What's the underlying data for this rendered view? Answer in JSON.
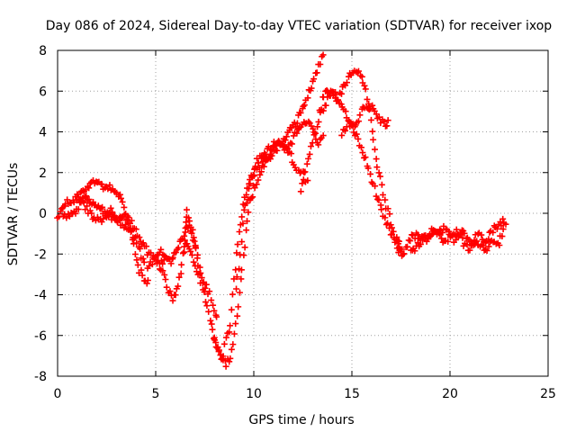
{
  "chart_data": {
    "type": "scatter",
    "title": "Day 086 of 2024, Sidereal Day-to-day VTEC variation (SDTVAR) for receiver ixop",
    "xlabel": "GPS time / hours",
    "ylabel": "SDTVAR / TECUs",
    "xlim": [
      0,
      25
    ],
    "ylim": [
      -8,
      8
    ],
    "xticks": [
      0,
      5,
      10,
      15,
      20,
      25
    ],
    "yticks": [
      -8,
      -6,
      -4,
      -2,
      0,
      2,
      4,
      6,
      8
    ],
    "grid": true,
    "marker": "plus",
    "series_color": "#ff0000",
    "series": [
      {
        "name": "SDTVAR",
        "description": "Multiple overlapping satellite tracks; values estimated from trace envelopes",
        "tracks": [
          {
            "x": [
              0.0,
              0.2,
              0.4,
              0.7,
              1.0,
              1.3,
              1.6,
              1.9,
              2.2,
              2.5,
              2.8,
              3.1,
              3.4,
              3.7,
              4.0,
              4.3,
              4.6,
              4.9,
              5.2,
              5.5
            ],
            "y": [
              -0.2,
              0.3,
              0.5,
              0.6,
              0.8,
              1.1,
              1.4,
              1.5,
              1.4,
              1.2,
              1.3,
              0.9,
              0.3,
              -0.4,
              -0.9,
              -1.4,
              -1.9,
              -2.2,
              -2.4,
              -2.3
            ]
          },
          {
            "x": [
              0.3,
              0.6,
              0.9,
              1.2,
              1.5,
              1.8,
              2.1,
              2.4,
              2.7,
              3.0,
              3.3,
              3.6,
              3.9,
              4.2,
              4.5
            ],
            "y": [
              0.0,
              -0.2,
              0.1,
              0.5,
              0.2,
              -0.2,
              -0.4,
              -0.2,
              0.1,
              -0.3,
              -0.6,
              -0.8,
              -1.1,
              -1.9,
              -2.6
            ]
          },
          {
            "x": [
              1.0,
              1.4,
              1.8,
              2.2,
              2.6,
              3.0,
              3.4,
              3.7,
              3.9,
              4.1,
              4.4,
              4.7
            ],
            "y": [
              0.6,
              0.9,
              0.4,
              0.2,
              -0.1,
              -0.3,
              -0.1,
              -0.6,
              -1.5,
              -2.6,
              -3.3,
              -3.5
            ]
          },
          {
            "x": [
              4.6,
              4.9,
              5.2,
              5.5,
              5.7,
              5.9,
              6.1,
              6.3,
              6.5,
              6.7,
              6.9,
              7.1,
              7.3,
              7.5,
              7.7,
              7.9,
              8.1,
              8.3,
              8.5
            ],
            "y": [
              -2.7,
              -2.3,
              -1.9,
              -2.1,
              -2.4,
              -2.2,
              -1.7,
              -1.3,
              -0.9,
              -0.7,
              -1.2,
              -2.1,
              -3.0,
              -4.0,
              -4.9,
              -5.8,
              -6.4,
              -7.1,
              -6.8
            ]
          },
          {
            "x": [
              5.2,
              5.5,
              5.8,
              6.0,
              6.2,
              6.4,
              6.6,
              6.8,
              7.0,
              7.3,
              7.6,
              7.9,
              8.2
            ],
            "y": [
              -2.6,
              -3.3,
              -4.2,
              -4.0,
              -3.2,
              -2.1,
              -1.4,
              -1.9,
              -2.6,
              -3.3,
              -3.6,
              -4.4,
              -5.4
            ]
          },
          {
            "x": [
              6.4,
              6.5,
              6.6,
              6.8,
              7.0,
              7.2
            ],
            "y": [
              -1.8,
              -1.0,
              0.2,
              -0.6,
              -1.6,
              -2.4
            ]
          },
          {
            "x": [
              8.0,
              8.3,
              8.6,
              8.8,
              9.0,
              9.2,
              9.4,
              9.6,
              9.8,
              10.0,
              10.3,
              10.6,
              11.0,
              11.4,
              11.8,
              12.2,
              12.6,
              13.0,
              13.3,
              13.6
            ],
            "y": [
              -6.2,
              -6.9,
              -7.4,
              -7.0,
              -6.0,
              -4.5,
              -2.8,
              -1.0,
              0.5,
              1.2,
              1.9,
              2.5,
              3.0,
              3.5,
              4.0,
              4.5,
              5.4,
              6.4,
              7.2,
              7.9
            ]
          },
          {
            "x": [
              8.5,
              8.8,
              9.0,
              9.2,
              9.4,
              9.6,
              9.8,
              10.0,
              10.3,
              10.6,
              10.9,
              11.2,
              11.5,
              11.8,
              12.1,
              12.4,
              12.7,
              13.0,
              13.3,
              13.6
            ],
            "y": [
              -6.5,
              -5.5,
              -3.2,
              -1.5,
              0.0,
              1.0,
              1.6,
              2.0,
              2.4,
              3.0,
              3.3,
              3.6,
              3.3,
              3.2,
              3.9,
              4.3,
              4.6,
              4.0,
              3.5,
              3.9
            ]
          },
          {
            "x": [
              9.1,
              9.3,
              9.5,
              9.7,
              9.9,
              10.1,
              10.4,
              10.7,
              11.0,
              11.3,
              11.6,
              11.9,
              12.2,
              12.5,
              12.8
            ],
            "y": [
              -3.8,
              -2.0,
              0.2,
              0.8,
              1.6,
              2.4,
              2.9,
              2.6,
              3.2,
              3.5,
              3.2,
              2.8,
              2.2,
              2.0,
              1.4
            ]
          },
          {
            "x": [
              12.4,
              12.7,
              13.0,
              13.3,
              13.5,
              13.7,
              14.0,
              14.3,
              14.6,
              14.9,
              15.2,
              15.5,
              15.7,
              15.9,
              16.1,
              16.3,
              16.6,
              16.9,
              17.2,
              17.5,
              17.7
            ],
            "y": [
              1.0,
              2.4,
              3.6,
              4.6,
              5.6,
              6.2,
              5.8,
              5.6,
              6.2,
              6.9,
              7.0,
              6.7,
              6.0,
              5.0,
              3.6,
              2.3,
              1.0,
              -0.2,
              -1.2,
              -1.8,
              -2.2
            ]
          },
          {
            "x": [
              13.4,
              13.7,
              14.0,
              14.3,
              14.6,
              14.9,
              15.2,
              15.5,
              15.8,
              16.1,
              16.4,
              16.7,
              16.9
            ],
            "y": [
              4.8,
              5.4,
              6.1,
              5.7,
              5.0,
              4.4,
              4.2,
              5.0,
              5.3,
              5.1,
              4.6,
              4.4,
              4.5
            ]
          },
          {
            "x": [
              14.5,
              14.8,
              15.1,
              15.4,
              15.7,
              16.0,
              16.3,
              16.6,
              16.9,
              17.2,
              17.5
            ],
            "y": [
              3.8,
              4.5,
              4.1,
              3.4,
              2.6,
              1.7,
              0.7,
              -0.2,
              -0.8,
              -1.4,
              -1.6
            ]
          },
          {
            "x": [
              17.3,
              17.6,
              17.9,
              18.2,
              18.5,
              18.8,
              19.1,
              19.4,
              19.7,
              20.0,
              20.3,
              20.6,
              20.9,
              21.2,
              21.5,
              21.8,
              22.1,
              22.4,
              22.7,
              22.9
            ],
            "y": [
              -1.7,
              -2.1,
              -1.3,
              -1.1,
              -1.2,
              -1.4,
              -0.9,
              -1.0,
              -0.8,
              -1.1,
              -1.3,
              -0.7,
              -1.2,
              -1.6,
              -1.0,
              -1.3,
              -0.9,
              -0.6,
              -0.4,
              -0.7
            ]
          },
          {
            "x": [
              18.0,
              18.3,
              18.6,
              18.9,
              19.2,
              19.5,
              19.8,
              20.1,
              20.4,
              20.7,
              21.0,
              21.3,
              21.6,
              21.9,
              22.2,
              22.5,
              22.8
            ],
            "y": [
              -1.9,
              -1.6,
              -1.3,
              -1.0,
              -0.8,
              -1.2,
              -1.4,
              -1.0,
              -0.9,
              -1.5,
              -1.8,
              -1.2,
              -1.6,
              -1.7,
              -1.3,
              -1.4,
              -0.8
            ]
          }
        ]
      }
    ]
  }
}
